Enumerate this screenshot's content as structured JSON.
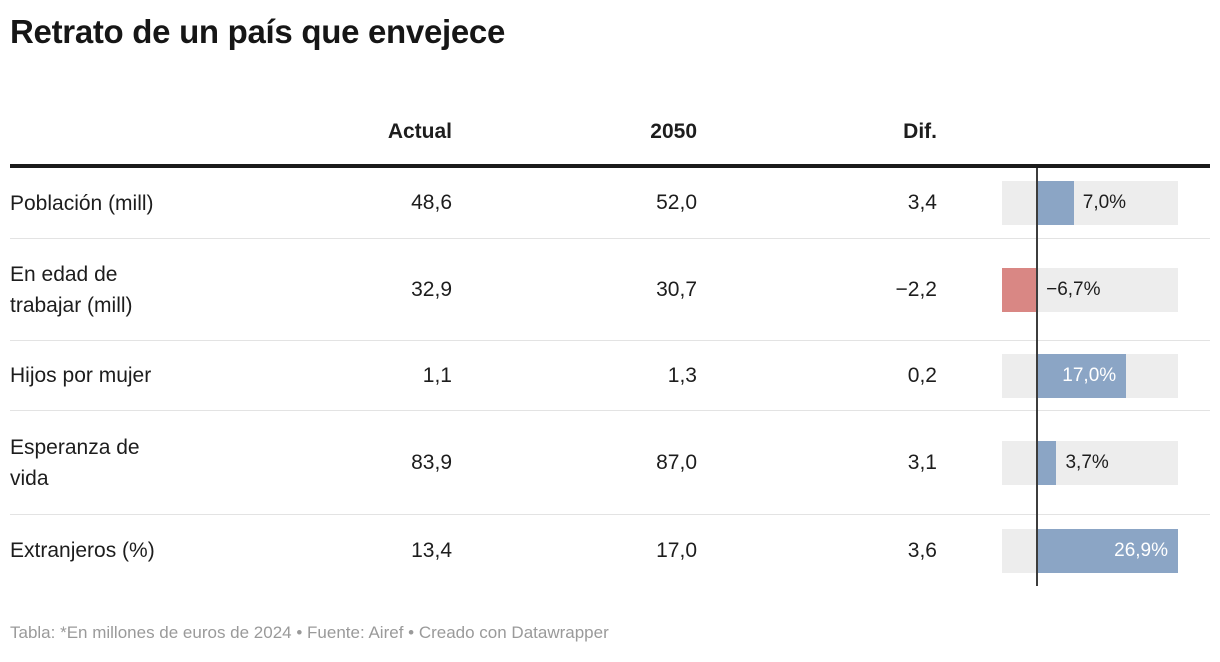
{
  "title": "Retrato de un país que envejece",
  "columns": {
    "actual": "Actual",
    "y2050": "2050",
    "dif": "Dif."
  },
  "rows": [
    {
      "label": "Población (mill)",
      "actual": "48,6",
      "y2050": "52,0",
      "dif": "3,4",
      "pct": 7.0,
      "pct_label": "7,0%",
      "label_pos": "outside"
    },
    {
      "label": "En edad de\ntrabajar (mill)",
      "actual": "32,9",
      "y2050": "30,7",
      "dif": "−2,2",
      "pct": -6.7,
      "pct_label": "−6,7%",
      "label_pos": "outside"
    },
    {
      "label": "Hijos por mujer",
      "actual": "1,1",
      "y2050": "1,3",
      "dif": "0,2",
      "pct": 17.0,
      "pct_label": "17,0%",
      "label_pos": "inside"
    },
    {
      "label": "Esperanza de\nvida",
      "actual": "83,9",
      "y2050": "87,0",
      "dif": "3,1",
      "pct": 3.7,
      "pct_label": "3,7%",
      "label_pos": "outside"
    },
    {
      "label": "Extranjeros (%)",
      "actual": "13,4",
      "y2050": "17,0",
      "dif": "3,6",
      "pct": 26.9,
      "pct_label": "26,9%",
      "label_pos": "inside"
    }
  ],
  "chart_data": {
    "type": "bar",
    "orientation": "horizontal",
    "title": "Retrato de un país que envejece",
    "categories": [
      "Población (mill)",
      "En edad de trabajar (mill)",
      "Hijos por mujer",
      "Esperanza de vida",
      "Extranjeros (%)"
    ],
    "series": [
      {
        "name": "Actual",
        "values": [
          48.6,
          32.9,
          1.1,
          83.9,
          13.4
        ]
      },
      {
        "name": "2050",
        "values": [
          52.0,
          30.7,
          1.3,
          87.0,
          17.0
        ]
      },
      {
        "name": "Dif.",
        "values": [
          3.4,
          -2.2,
          0.2,
          3.1,
          3.6
        ]
      },
      {
        "name": "Dif. %",
        "values": [
          7.0,
          -6.7,
          17.0,
          3.7,
          26.9
        ]
      }
    ],
    "bar_value_labels": [
      "7,0%",
      "−6,7%",
      "17,0%",
      "3,7%",
      "26,9%"
    ],
    "xlim": [
      -6.7,
      26.9
    ],
    "grid": false,
    "legend": "none"
  },
  "colors": {
    "positive": "#8ba5c5",
    "negative": "#d98784",
    "track": "#ededed",
    "axis": "#3d3d3d",
    "rule": "#1a1a1a",
    "text": "#1d1d1d",
    "separator": "#e3e3e3",
    "inside_label": "#ffffff",
    "footer_text": "#9a9a9a"
  },
  "footer": "Tabla: *En millones de euros de 2024 • Fuente: Airef • Creado con Datawrapper"
}
